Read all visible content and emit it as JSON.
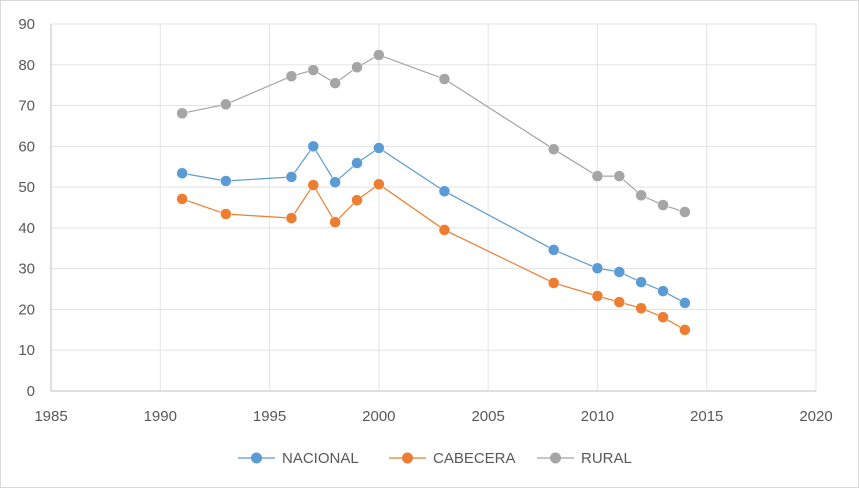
{
  "chart_data": {
    "type": "line",
    "title": "",
    "xlabel": "",
    "ylabel": "",
    "xlim": [
      1985,
      2020
    ],
    "ylim": [
      0,
      90
    ],
    "xticks": [
      1985,
      1990,
      1995,
      2000,
      2005,
      2010,
      2015,
      2020
    ],
    "yticks": [
      0,
      10,
      20,
      30,
      40,
      50,
      60,
      70,
      80,
      90
    ],
    "grid": true,
    "legend_position": "bottom",
    "x": [
      1991,
      1993,
      1996,
      1997,
      1998,
      1999,
      2000,
      2003,
      2008,
      2010,
      2011,
      2012,
      2013,
      2014
    ],
    "series": [
      {
        "name": "NACIONAL",
        "color": "#5B9BD5",
        "values": [
          53.4,
          51.5,
          52.5,
          60.0,
          51.2,
          55.9,
          59.6,
          49.0,
          34.6,
          30.1,
          29.2,
          26.7,
          24.5,
          21.6
        ]
      },
      {
        "name": "CABECERA",
        "color": "#ED7D31",
        "values": [
          47.1,
          43.4,
          42.4,
          50.5,
          41.4,
          46.8,
          50.7,
          39.5,
          26.5,
          23.3,
          21.8,
          20.3,
          18.1,
          15.0
        ]
      },
      {
        "name": "RURAL",
        "color": "#A5A5A5",
        "values": [
          68.1,
          70.3,
          77.2,
          78.7,
          75.5,
          79.4,
          82.4,
          76.5,
          59.3,
          52.7,
          52.7,
          48.0,
          45.6,
          43.9
        ]
      }
    ]
  }
}
